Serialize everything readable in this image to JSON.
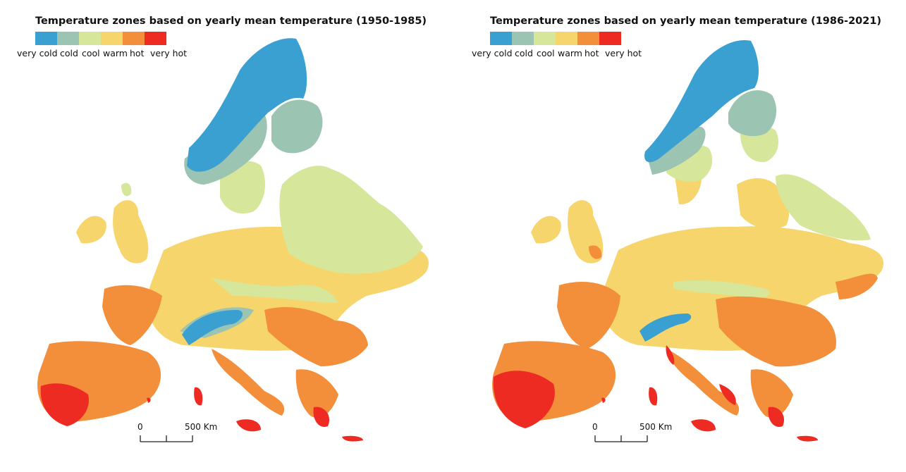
{
  "legend": {
    "items": [
      {
        "label": "very cold",
        "color": "#3a9fd1"
      },
      {
        "label": "cold",
        "color": "#9bc4b3"
      },
      {
        "label": "cool",
        "color": "#d6e69a"
      },
      {
        "label": "warm",
        "color": "#f6d66c"
      },
      {
        "label": "hot",
        "color": "#f38e3a"
      },
      {
        "label": "very hot",
        "color": "#ee2b22"
      }
    ]
  },
  "scale_bar": {
    "start_label": "0",
    "end_label": "500 Km"
  },
  "panels": [
    {
      "title": "Temperature zones based on yearly mean temperature (1950-1985)",
      "period": "1950-1985"
    },
    {
      "title": "Temperature zones based on yearly mean temperature (1986-2021)",
      "period": "1986-2021"
    }
  ]
}
